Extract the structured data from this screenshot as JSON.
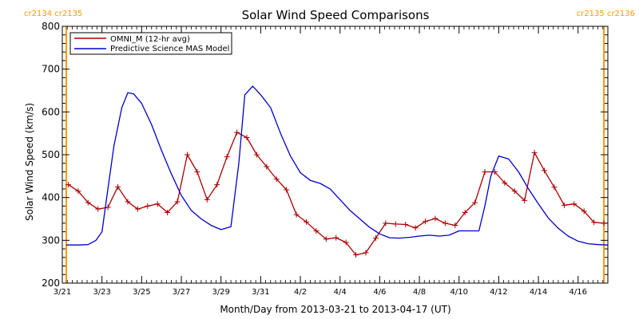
{
  "chart_data": {
    "type": "line",
    "title": "Solar Wind Speed Comparisons",
    "xlabel": "Month/Day from 2013-03-21 to 2013-04-17 (UT)",
    "ylabel": "Solar Wind Speed (km/s)",
    "x_ticks": [
      {
        "day": 0,
        "label": "3/21"
      },
      {
        "day": 2,
        "label": "3/23"
      },
      {
        "day": 4,
        "label": "3/25"
      },
      {
        "day": 6,
        "label": "3/27"
      },
      {
        "day": 8,
        "label": "3/29"
      },
      {
        "day": 10,
        "label": "3/31"
      },
      {
        "day": 12,
        "label": "4/2"
      },
      {
        "day": 14,
        "label": "4/4"
      },
      {
        "day": 16,
        "label": "4/6"
      },
      {
        "day": 18,
        "label": "4/8"
      },
      {
        "day": 20,
        "label": "4/10"
      },
      {
        "day": 22,
        "label": "4/12"
      },
      {
        "day": 24,
        "label": "4/14"
      },
      {
        "day": 26,
        "label": "4/16"
      }
    ],
    "xlim": [
      0,
      27.5
    ],
    "ylim": [
      200,
      800
    ],
    "y_ticks": [
      200,
      300,
      400,
      500,
      600,
      700,
      800
    ],
    "grid": false,
    "legend_position": "top-left",
    "carrington_markers": [
      {
        "day": 0.2,
        "left_label": "cr2134",
        "right_label": "cr2135",
        "label_side": "left"
      },
      {
        "day": 27.3,
        "left_label": "cr2135",
        "right_label": "cr2136",
        "label_side": "right"
      }
    ],
    "series": [
      {
        "name": "OMNI_M (12-hr avg)",
        "color": "#aa0000",
        "marker": "plus",
        "x": [
          0.3,
          0.8,
          1.3,
          1.8,
          2.3,
          2.8,
          3.3,
          3.8,
          4.3,
          4.8,
          5.3,
          5.8,
          6.3,
          6.8,
          7.3,
          7.8,
          8.3,
          8.8,
          9.3,
          9.8,
          10.3,
          10.8,
          11.3,
          11.8,
          12.3,
          12.8,
          13.3,
          13.8,
          14.3,
          14.8,
          15.3,
          15.8,
          16.3,
          16.8,
          17.3,
          17.8,
          18.3,
          18.8,
          19.3,
          19.8,
          20.3,
          20.8,
          21.3,
          21.8,
          22.3,
          22.8,
          23.3,
          23.8,
          24.3,
          24.8,
          25.3,
          25.8,
          26.3,
          26.8,
          27.3
        ],
        "values": [
          430,
          415,
          388,
          373,
          377,
          425,
          390,
          373,
          380,
          385,
          365,
          390,
          500,
          460,
          395,
          430,
          495,
          552,
          540,
          500,
          472,
          443,
          418,
          360,
          343,
          322,
          303,
          306,
          295,
          266,
          271,
          305,
          340,
          338,
          337,
          329,
          344,
          351,
          340,
          335,
          365,
          388,
          460,
          460,
          434,
          415,
          393,
          505,
          463,
          424,
          382,
          385,
          368,
          342,
          340
        ]
      },
      {
        "name": "Predictive Science MAS Model",
        "color": "#0000cc",
        "x": [
          0.2,
          0.8,
          1.3,
          1.7,
          2.0,
          2.3,
          2.6,
          3.0,
          3.3,
          3.6,
          4.0,
          4.5,
          5.0,
          5.5,
          6.0,
          6.5,
          7.0,
          7.5,
          8.0,
          8.5,
          8.9,
          9.2,
          9.6,
          10.0,
          10.5,
          11.0,
          11.5,
          12.0,
          12.5,
          13.0,
          13.5,
          14.0,
          14.5,
          15.0,
          15.5,
          16.0,
          16.5,
          17.0,
          17.5,
          18.0,
          18.5,
          19.0,
          19.5,
          20.0,
          20.5,
          21.0,
          21.3,
          21.6,
          22.0,
          22.5,
          23.0,
          23.5,
          24.0,
          24.5,
          25.0,
          25.5,
          26.0,
          26.5,
          27.0,
          27.5
        ],
        "values": [
          289,
          289,
          290,
          300,
          320,
          420,
          520,
          610,
          645,
          642,
          620,
          570,
          510,
          455,
          405,
          370,
          350,
          335,
          325,
          332,
          480,
          640,
          660,
          640,
          610,
          550,
          497,
          458,
          440,
          433,
          420,
          395,
          370,
          350,
          330,
          315,
          306,
          305,
          307,
          310,
          312,
          310,
          312,
          322,
          322,
          322,
          380,
          450,
          497,
          490,
          460,
          420,
          385,
          352,
          328,
          310,
          298,
          292,
          290,
          289
        ]
      }
    ]
  }
}
